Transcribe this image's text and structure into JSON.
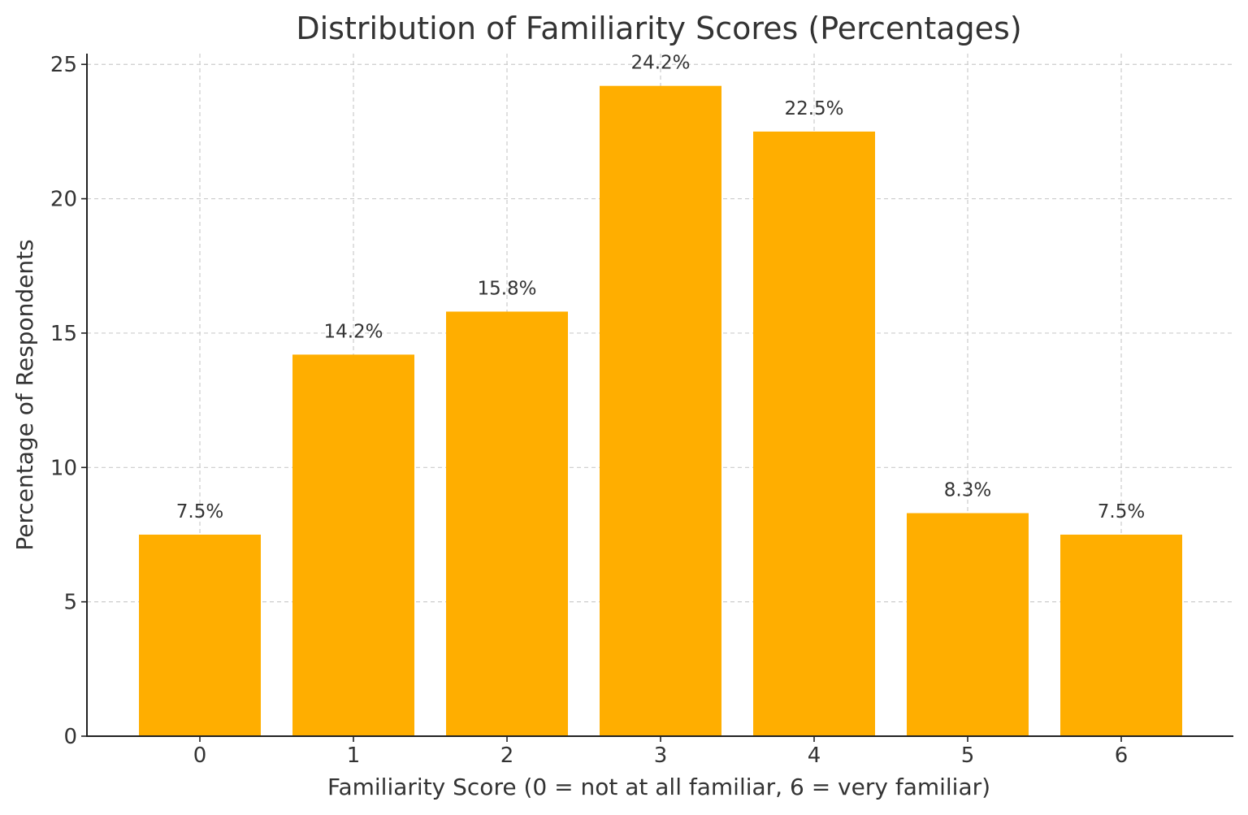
{
  "chart_data": {
    "type": "bar",
    "title": "Distribution of Familiarity Scores (Percentages)",
    "xlabel": "Familiarity Score (0 = not at all familiar, 6 = very familiar)",
    "ylabel": "Percentage of Respondents",
    "categories": [
      "0",
      "1",
      "2",
      "3",
      "4",
      "5",
      "6"
    ],
    "values": [
      7.5,
      14.2,
      15.8,
      24.2,
      22.5,
      8.3,
      7.5
    ],
    "data_labels": [
      "7.5%",
      "14.2%",
      "15.8%",
      "24.2%",
      "22.5%",
      "8.3%",
      "7.5%"
    ],
    "yticks": [
      0,
      5,
      10,
      15,
      20,
      25
    ],
    "ylim": [
      0,
      25.4
    ],
    "grid": true,
    "bar_color": "#FFAE00"
  }
}
